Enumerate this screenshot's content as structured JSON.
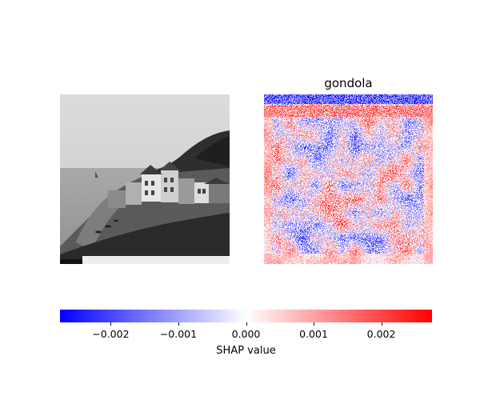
{
  "chart_data": {
    "type": "heatmap",
    "title": "gondola",
    "input_image": "grayscale photo of a coastal village with houses on a cliffside beside the sea",
    "colormap": [
      "#0000ff",
      "#ffffff",
      "#ff0000"
    ],
    "colorbar": {
      "label": "SHAP value",
      "range": [
        -0.00275,
        0.00275
      ],
      "ticks": [
        -0.002,
        -0.001,
        0.0,
        0.001,
        0.002
      ],
      "tick_labels": [
        "−0.002",
        "−0.001",
        "0.000",
        "0.001",
        "0.002"
      ]
    }
  }
}
